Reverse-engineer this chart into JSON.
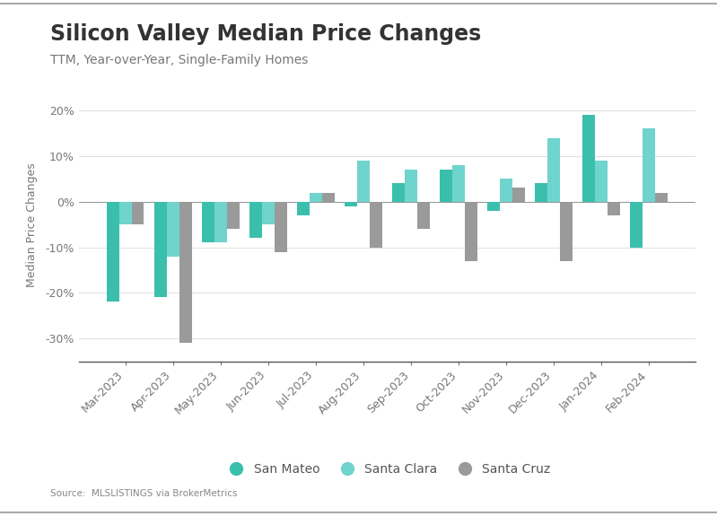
{
  "title": "Silicon Valley Median Price Changes",
  "subtitle": "TTM, Year-over-Year, Single-Family Homes",
  "ylabel": "Median Price Changes",
  "source": "Source:  MLSLISTINGS via BrokerMetrics",
  "categories": [
    "Mar-2023",
    "Apr-2023",
    "May-2023",
    "Jun-2023",
    "Jul-2023",
    "Aug-2023",
    "Sep-2023",
    "Oct-2023",
    "Nov-2023",
    "Dec-2023",
    "Jan-2024",
    "Feb-2024"
  ],
  "san_mateo": [
    -22,
    -21,
    -9,
    -8,
    -3,
    -1,
    4,
    7,
    -2,
    4,
    19,
    -10
  ],
  "santa_clara": [
    -5,
    -12,
    -9,
    -5,
    2,
    9,
    7,
    8,
    5,
    14,
    9,
    16
  ],
  "santa_cruz": [
    -5,
    -31,
    -6,
    -11,
    2,
    -10,
    -6,
    -13,
    3,
    -13,
    -3,
    2
  ],
  "color_san_mateo": "#3bbfad",
  "color_santa_clara": "#6fd4cd",
  "color_santa_cruz": "#9a9a9a",
  "ylim": [
    -35,
    25
  ],
  "yticks": [
    -30,
    -20,
    -10,
    0,
    10,
    20
  ],
  "background_color": "#ffffff",
  "title_fontsize": 17,
  "subtitle_fontsize": 10,
  "axis_fontsize": 9,
  "legend_fontsize": 10,
  "bar_width": 0.26,
  "top_border_color": "#cccccc"
}
